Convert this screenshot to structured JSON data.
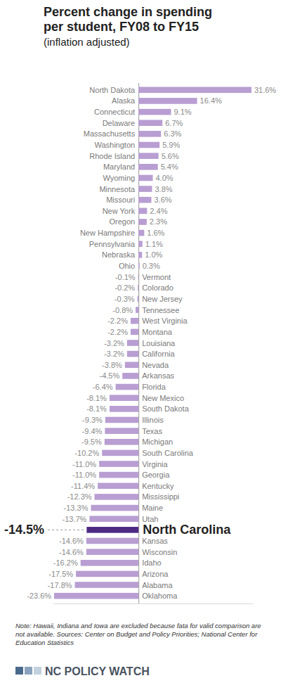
{
  "chart_data": {
    "type": "bar",
    "orientation": "horizontal",
    "title": "Percent change in spending\nper student, FY08 to FY15",
    "subtitle": "(inflation adjusted)",
    "categories": [
      "North Dakota",
      "Alaska",
      "Connecticut",
      "Delaware",
      "Massachusetts",
      "Washington",
      "Rhode Island",
      "Maryland",
      "Wyoming",
      "Minnesota",
      "Missouri",
      "New York",
      "Oregon",
      "New Hampshire",
      "Pennsylvania",
      "Nebraska",
      "Ohio",
      "Vermont",
      "Colorado",
      "New Jersey",
      "Tennessee",
      "West Virginia",
      "Montana",
      "Louisiana",
      "California",
      "Nevada",
      "Arkansas",
      "Florida",
      "New Mexico",
      "South Dakota",
      "Illinois",
      "Texas",
      "Michigan",
      "South Carolina",
      "Virginia",
      "Georgia",
      "Kentucky",
      "Mississippi",
      "Maine",
      "Utah",
      "North Carolina",
      "Kansas",
      "Wisconsin",
      "Idaho",
      "Arizona",
      "Alabama",
      "Oklahoma"
    ],
    "values": [
      31.6,
      16.4,
      9.1,
      6.7,
      6.3,
      5.9,
      5.6,
      5.4,
      4.0,
      3.8,
      3.6,
      2.4,
      2.3,
      1.6,
      1.1,
      1.0,
      0.3,
      -0.1,
      -0.2,
      -0.3,
      -0.8,
      -2.2,
      -2.2,
      -3.2,
      -3.2,
      -3.8,
      -4.5,
      -6.4,
      -8.1,
      -8.1,
      -9.3,
      -9.4,
      -9.5,
      -10.2,
      -11.0,
      -11.0,
      -11.4,
      -12.3,
      -13.3,
      -13.7,
      -14.5,
      -14.6,
      -14.6,
      -16.2,
      -17.5,
      -17.8,
      -23.6
    ],
    "value_labels": [
      "31.6%",
      "16.4%",
      "9.1%",
      "6.7%",
      "6.3%",
      "5.9%",
      "5.6%",
      "5.4%",
      "4.0%",
      "3.8%",
      "3.6%",
      "2.4%",
      "2.3%",
      "1.6%",
      "1.1%",
      "1.0%",
      "0.3%",
      "-0.1%",
      "-0.2%",
      "-0.3%",
      "-0.8%",
      "-2.2%",
      "-2.2%",
      "-3.2%",
      "-3.2%",
      "-3.8%",
      "-4.5%",
      "-6.4%",
      "-8.1%",
      "-8.1%",
      "-9.3%",
      "-9.4%",
      "-9.5%",
      "-10.2%",
      "-11.0%",
      "-11.0%",
      "-11.4%",
      "-12.3%",
      "-13.3%",
      "-13.7%",
      "-14.5%",
      "-14.6%",
      "-14.6%",
      "-16.2%",
      "-17.5%",
      "-17.8%",
      "-23.6%"
    ],
    "colors": [
      "#b89ed2",
      "#b89ed2",
      "#b89ed2",
      "#b89ed2",
      "#b89ed2",
      "#b89ed2",
      "#b89ed2",
      "#b89ed2",
      "#b89ed2",
      "#b89ed2",
      "#b89ed2",
      "#b89ed2",
      "#b89ed2",
      "#b89ed2",
      "#b89ed2",
      "#b89ed2",
      "#b89ed2",
      "#b89ed2",
      "#b89ed2",
      "#b89ed2",
      "#b89ed2",
      "#b89ed2",
      "#b89ed2",
      "#b89ed2",
      "#b89ed2",
      "#b89ed2",
      "#b89ed2",
      "#b89ed2",
      "#b89ed2",
      "#b89ed2",
      "#b89ed2",
      "#b89ed2",
      "#b89ed2",
      "#b89ed2",
      "#b89ed2",
      "#b89ed2",
      "#b89ed2",
      "#b89ed2",
      "#b89ed2",
      "#b89ed2",
      "#4e2a84",
      "#b89ed2",
      "#b89ed2",
      "#b89ed2",
      "#b89ed2",
      "#b89ed2",
      "#b89ed2"
    ],
    "xlim": [
      -24,
      32
    ],
    "xticks": [
      0
    ],
    "tick_labels": false,
    "data_labels": true,
    "note": "Note: Hawaii, Indiana and Iowa are excluded because fata for valid comparison are not available. Sources: Center on Budget and Policy Priorities; National Center for Education Statistics",
    "brand": "NC POLICY WATCH"
  }
}
